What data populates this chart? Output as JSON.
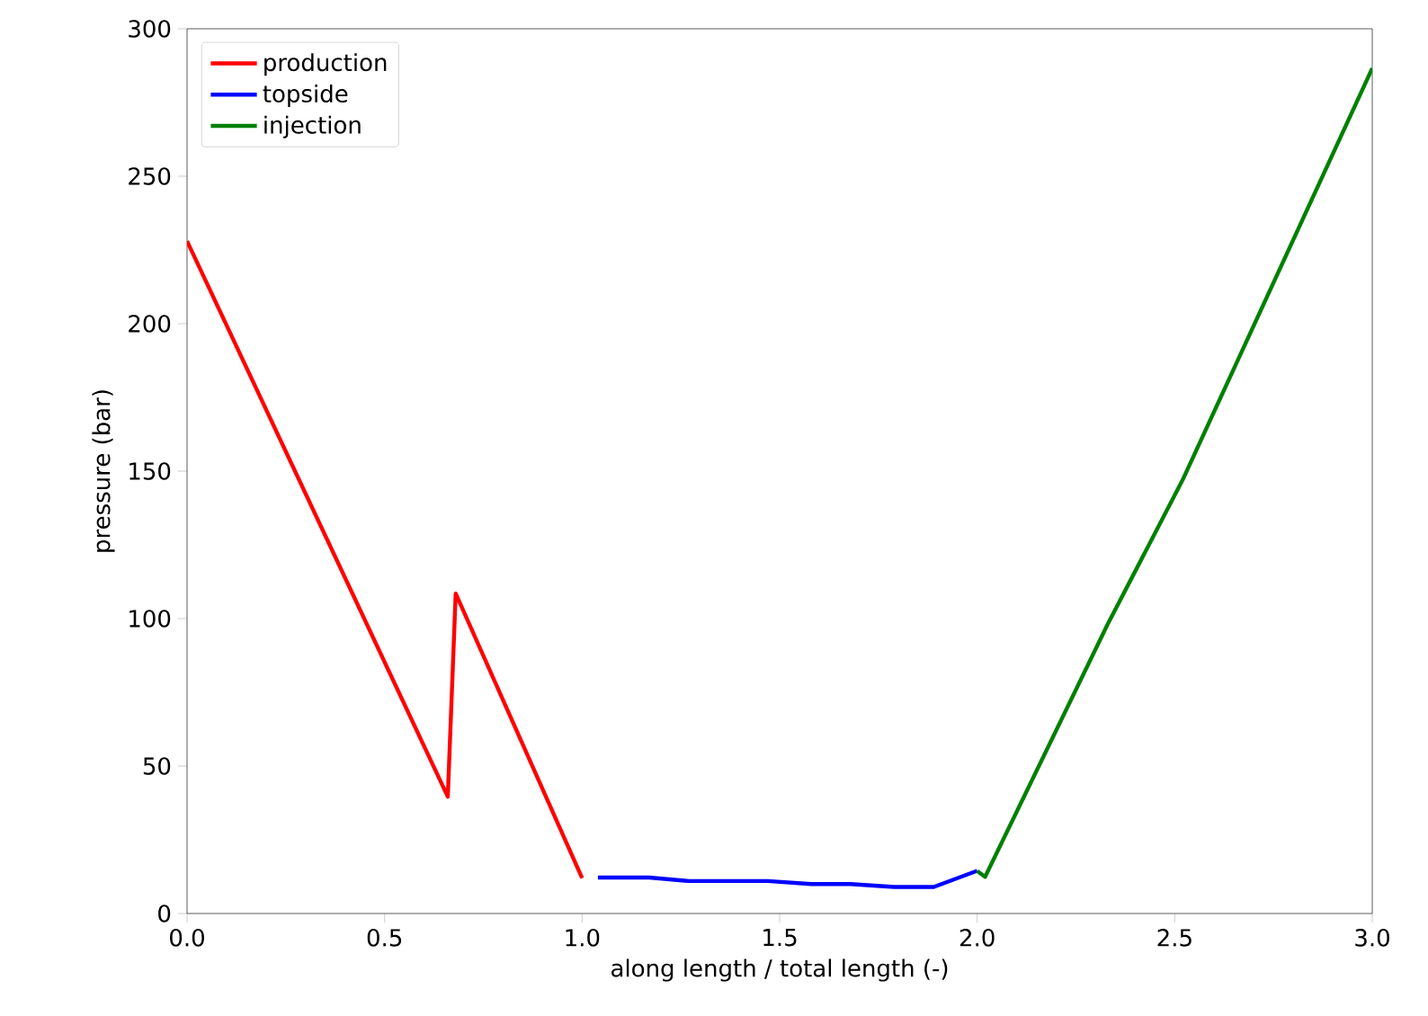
{
  "chart_data": {
    "type": "line",
    "xlabel": "along length / total length (-)",
    "ylabel": "pressure (bar)",
    "xlim": [
      0,
      3
    ],
    "ylim": [
      0,
      300
    ],
    "xticks": [
      {
        "value": 0,
        "label": "0.0"
      },
      {
        "value": 0.5,
        "label": "0.5"
      },
      {
        "value": 1,
        "label": "1.0"
      },
      {
        "value": 1.5,
        "label": "1.5"
      },
      {
        "value": 2,
        "label": "2.0"
      },
      {
        "value": 2.5,
        "label": "2.5"
      },
      {
        "value": 3,
        "label": "3.0"
      }
    ],
    "yticks": [
      0,
      50,
      100,
      150,
      200,
      250,
      300
    ],
    "legend": "top left",
    "grid": false,
    "marker": "none",
    "line_style": "solid",
    "series": [
      {
        "name": "production",
        "color": "#ff0000",
        "x": [
          0,
          0.66,
          0.68,
          1.0
        ],
        "values": [
          228,
          39.6,
          108.5,
          12
        ]
      },
      {
        "name": "topside",
        "color": "#0000ff",
        "x": [
          1.04,
          1.17,
          1.27,
          1.47,
          1.58,
          1.68,
          1.79,
          1.89,
          2.0
        ],
        "values": [
          12.2,
          12.2,
          11,
          11,
          10,
          10,
          9,
          9,
          14.5
        ]
      },
      {
        "name": "injection",
        "color": "#008000",
        "x": [
          2.0,
          2.02,
          2.33,
          2.52,
          3.0
        ],
        "values": [
          14.4,
          12.4,
          98,
          147,
          286.6
        ]
      }
    ]
  }
}
